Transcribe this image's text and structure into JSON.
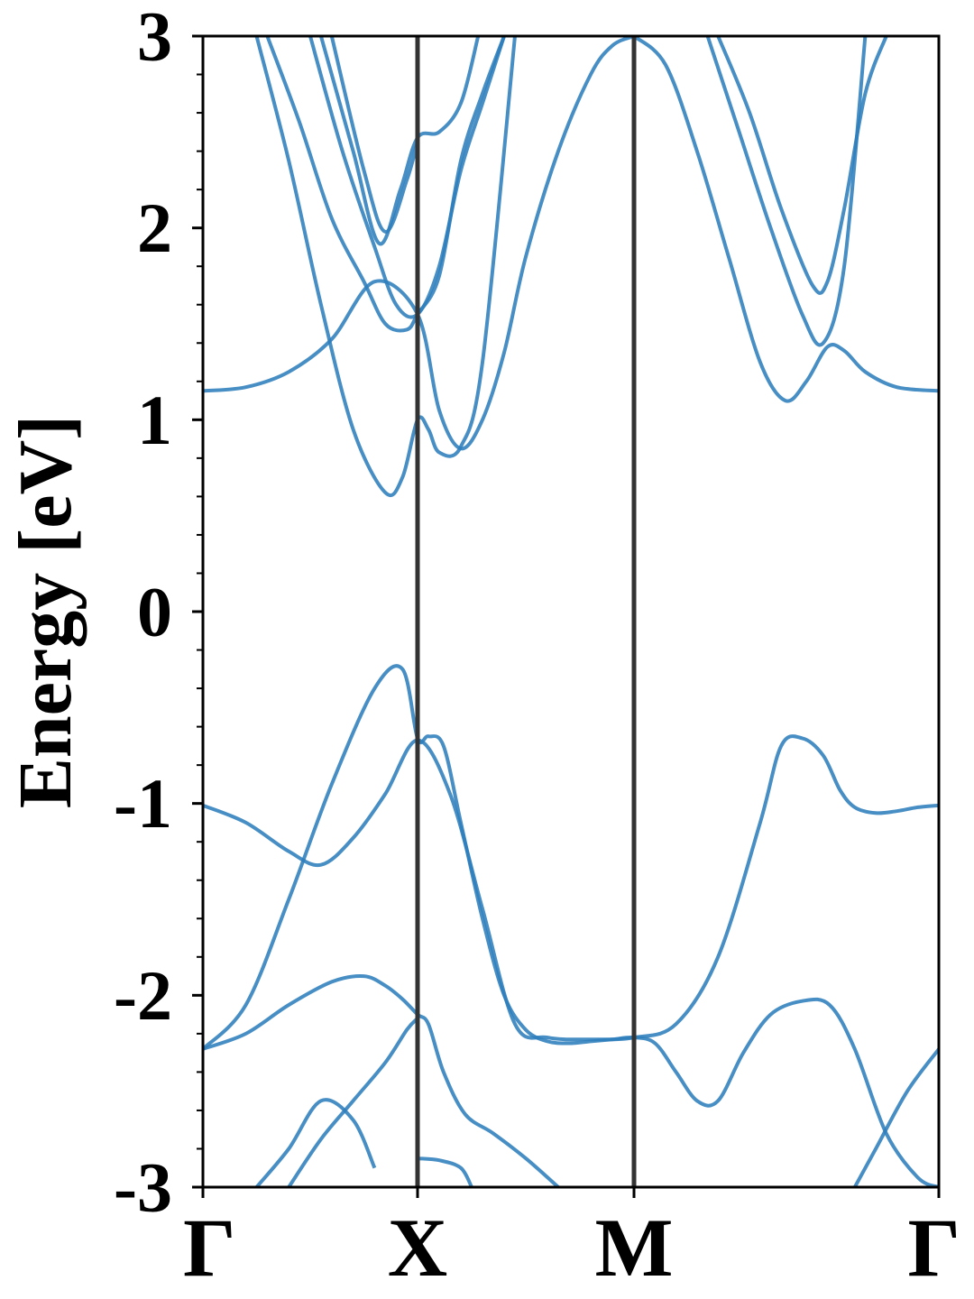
{
  "chart_data": {
    "type": "line",
    "title": "",
    "xlabel": "",
    "ylabel": "Energy [eV]",
    "ylim": [
      -3,
      3
    ],
    "yticks": [
      {
        "value": 3,
        "label": "3"
      },
      {
        "value": 2,
        "label": "2"
      },
      {
        "value": 1,
        "label": "1"
      },
      {
        "value": 0,
        "label": "0"
      },
      {
        "value": -1,
        "label": "-1"
      },
      {
        "value": -2,
        "label": "-2"
      },
      {
        "value": -3,
        "label": "-3"
      }
    ],
    "xlim": [
      0,
      3.45
    ],
    "kpoints": [
      {
        "position": 0,
        "label": "Γ"
      },
      {
        "position": 1.0,
        "label": "X"
      },
      {
        "position": 2.0,
        "label": "M"
      },
      {
        "position": 3.45,
        "label": "Γ"
      }
    ],
    "legend": "none",
    "grid": false,
    "colors": {
      "band": "#2e7ebc",
      "kline": "#333333",
      "axis": "#000000"
    },
    "series": [
      {
        "x": [
          0,
          0.2,
          0.4,
          0.6,
          0.75,
          0.85,
          0.93,
          1.0,
          1.05,
          1.12,
          1.22,
          1.35,
          1.5,
          1.65,
          1.8,
          2.0,
          2.2,
          2.4,
          2.6,
          2.75,
          2.85,
          2.93,
          2.98,
          3.05,
          3.2,
          3.35,
          3.45
        ],
        "y": [
          -2.28,
          -2.2,
          -2.05,
          -1.93,
          -1.9,
          -1.95,
          -2.02,
          -2.1,
          -2.15,
          -2.4,
          -2.62,
          -2.72,
          -2.85,
          -3.0,
          null,
          null,
          null,
          null,
          null,
          null,
          null,
          null,
          null,
          null,
          null,
          null,
          null
        ]
      },
      {
        "x": [
          0,
          0.2,
          0.4,
          0.6,
          0.8,
          0.93,
          1.0,
          1.05,
          1.12,
          1.2,
          1.3,
          1.4,
          1.5,
          1.6,
          1.7,
          1.8,
          1.9,
          2.0,
          2.1,
          2.2,
          2.3,
          2.4,
          2.52,
          2.65,
          2.8,
          2.93,
          3.05,
          3.2,
          3.35,
          3.45
        ],
        "y": [
          -2.28,
          -2.05,
          -1.5,
          -0.9,
          -0.4,
          -0.3,
          -0.66,
          -0.65,
          -0.7,
          -1.1,
          -1.6,
          -2.0,
          -2.18,
          -2.24,
          -2.25,
          -2.24,
          -2.23,
          -2.22,
          -2.25,
          -2.4,
          -2.55,
          -2.55,
          -2.3,
          -2.1,
          -2.03,
          -2.05,
          -2.28,
          -2.72,
          -2.95,
          -3.0
        ]
      },
      {
        "x": [
          0,
          0.2,
          0.4,
          0.55,
          0.7,
          0.85,
          1.0,
          1.15,
          1.3,
          1.45,
          1.6,
          1.8,
          2.0,
          2.2,
          2.4,
          2.6,
          2.7,
          2.8,
          2.9,
          2.98,
          3.05,
          3.15,
          3.25,
          3.35,
          3.45
        ],
        "y": [
          -1.01,
          -1.1,
          -1.25,
          -1.32,
          -1.18,
          -0.95,
          -0.67,
          -0.95,
          -1.55,
          -2.15,
          -2.22,
          -2.23,
          -2.22,
          -2.15,
          -1.8,
          -1.1,
          -0.7,
          -0.66,
          -0.75,
          -0.93,
          -1.02,
          -1.05,
          -1.04,
          -1.02,
          -1.01
        ]
      },
      {
        "x": [
          0,
          0.2,
          0.4,
          0.6,
          0.8,
          1.0,
          1.1,
          1.2,
          1.3,
          1.4,
          1.5,
          1.65,
          1.8,
          1.9,
          2.0
        ],
        "y": [
          1.15,
          1.17,
          1.25,
          1.42,
          1.72,
          1.55,
          1.05,
          0.85,
          1.0,
          1.35,
          1.85,
          2.4,
          2.8,
          2.95,
          3.0
        ]
      },
      {
        "x": [
          0.25,
          0.4,
          0.55,
          0.7,
          0.85,
          0.93,
          1.0,
          1.05,
          1.1,
          1.2,
          1.3,
          1.45
        ],
        "y": [
          3.0,
          2.35,
          1.6,
          0.95,
          0.62,
          0.7,
          1.0,
          0.95,
          0.83,
          0.86,
          1.3,
          3.0
        ]
      },
      {
        "x": [
          0.3,
          0.45,
          0.6,
          0.75,
          0.85,
          0.95,
          1.0,
          1.1,
          1.2,
          1.3,
          1.4
        ],
        "y": [
          3.0,
          2.55,
          2.05,
          1.72,
          1.5,
          1.47,
          1.55,
          1.75,
          2.35,
          2.7,
          3.0
        ]
      },
      {
        "x": [
          0.5,
          0.65,
          0.8,
          0.9,
          1.0,
          1.1,
          1.2,
          1.3,
          1.4
        ],
        "y": [
          3.0,
          2.4,
          1.9,
          1.6,
          1.55,
          1.8,
          2.3,
          2.65,
          3.0
        ]
      },
      {
        "x": [
          0.55,
          0.7,
          0.82,
          0.92,
          1.0,
          1.1,
          1.2,
          1.28
        ],
        "y": [
          3.0,
          2.4,
          1.92,
          2.2,
          2.47,
          2.5,
          2.65,
          3.0
        ]
      },
      {
        "x": [
          0.6,
          0.75,
          0.85,
          0.95,
          1.0
        ],
        "y": [
          3.0,
          2.3,
          1.98,
          2.25,
          2.45
        ]
      },
      {
        "x": [
          2.0,
          2.15,
          2.3,
          2.45,
          2.6,
          2.72,
          2.82,
          2.92,
          3.0,
          3.1,
          3.25,
          3.45
        ],
        "y": [
          3.0,
          2.85,
          2.4,
          1.85,
          1.3,
          1.1,
          1.2,
          1.38,
          1.36,
          1.25,
          1.17,
          1.15
        ]
      },
      {
        "x": [
          2.35,
          2.5,
          2.65,
          2.8,
          2.9,
          3.0,
          3.1
        ],
        "y": [
          3.0,
          2.5,
          2.0,
          1.55,
          1.4,
          1.8,
          3.0
        ]
      },
      {
        "x": [
          2.4,
          2.55,
          2.7,
          2.85,
          2.92,
          3.0,
          3.1,
          3.2
        ],
        "y": [
          3.0,
          2.6,
          2.1,
          1.7,
          1.72,
          2.1,
          2.7,
          3.0
        ]
      },
      {
        "x": [
          0.25,
          0.4,
          0.55,
          0.7,
          0.8
        ],
        "y": [
          -3.0,
          -2.8,
          -2.55,
          -2.65,
          -2.9
        ]
      },
      {
        "x": [
          0.4,
          0.55,
          0.7,
          0.85,
          0.95,
          1.0
        ],
        "y": [
          -3.0,
          -2.75,
          -2.55,
          -2.35,
          -2.18,
          -2.12
        ]
      },
      {
        "x": [
          1.0,
          1.1,
          1.2,
          1.25
        ],
        "y": [
          -2.85,
          -2.86,
          -2.9,
          -3.0
        ]
      },
      {
        "x": [
          3.05,
          3.15,
          3.3,
          3.45
        ],
        "y": [
          -3.0,
          -2.8,
          -2.5,
          -2.28
        ]
      }
    ]
  }
}
